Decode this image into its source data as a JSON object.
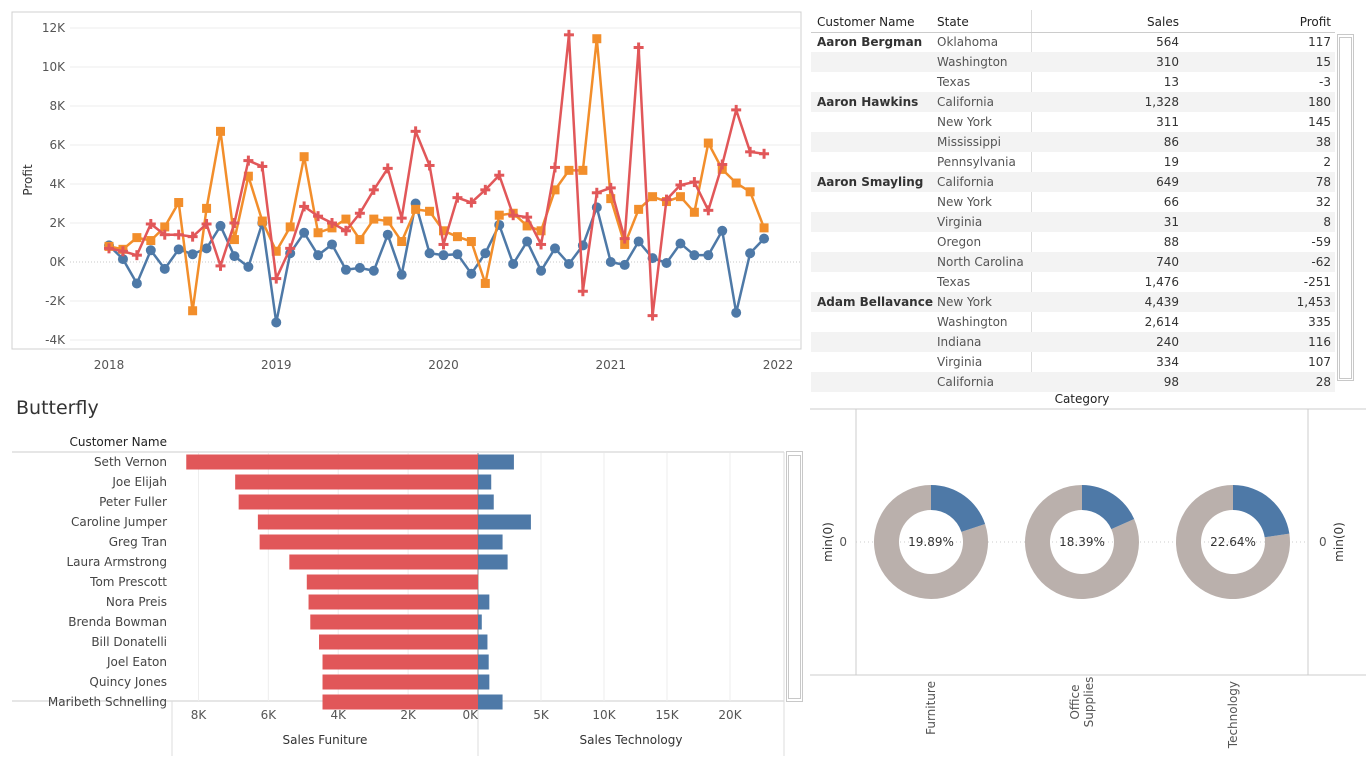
{
  "chart_data": [
    {
      "type": "line",
      "ylabel": "Profit",
      "xlabel": "",
      "ylim": [
        -4000,
        12000
      ],
      "yticks": [
        12000,
        10000,
        8000,
        6000,
        4000,
        2000,
        0,
        -2000,
        -4000
      ],
      "ytick_labels": [
        "12K",
        "10K",
        "8K",
        "6K",
        "4K",
        "2K",
        "0K",
        "-2K",
        "-4K"
      ],
      "xticks": [
        "2018",
        "2019",
        "2020",
        "2021",
        "2022"
      ],
      "x_start": "2018-01",
      "series": [
        {
          "color": "#4e79a7",
          "marker": "circle",
          "values": [
            850,
            150,
            -1100,
            600,
            -350,
            650,
            400,
            700,
            1850,
            300,
            -250,
            2000,
            -3100,
            450,
            1500,
            350,
            900,
            -400,
            -300,
            -450,
            1400,
            -650,
            3000,
            450,
            350,
            400,
            -600,
            450,
            1900,
            -100,
            1050,
            -450,
            700,
            -100,
            850,
            2800,
            0,
            -150,
            1050,
            200,
            -50,
            950,
            350,
            350,
            1600,
            -2600,
            450,
            1200
          ]
        },
        {
          "color": "#f28e2b",
          "marker": "square",
          "values": [
            800,
            650,
            1250,
            1100,
            1800,
            3050,
            -2500,
            2750,
            6700,
            1150,
            4400,
            2100,
            550,
            1800,
            5400,
            1500,
            1750,
            2200,
            1150,
            2200,
            2100,
            1050,
            2700,
            2600,
            1600,
            1300,
            1050,
            -1100,
            2400,
            2500,
            1850,
            1600,
            3700,
            4700,
            4700,
            11450,
            3250,
            900,
            2700,
            3350,
            3100,
            3350,
            2550,
            6100,
            4750,
            4050,
            3600,
            1750
          ]
        },
        {
          "color": "#e15759",
          "marker": "plus",
          "values": [
            700,
            550,
            350,
            1950,
            1400,
            1400,
            1300,
            1950,
            -200,
            2000,
            5200,
            4900,
            -850,
            700,
            2850,
            2350,
            2000,
            1600,
            2500,
            3700,
            4800,
            2250,
            6700,
            4950,
            900,
            3300,
            3050,
            3700,
            4450,
            2400,
            2300,
            900,
            4850,
            11650,
            -1500,
            3550,
            3800,
            1200,
            11000,
            -2750,
            3200,
            3950,
            4100,
            2650,
            5000,
            7800,
            5650,
            5550
          ]
        }
      ]
    },
    {
      "type": "bar",
      "title": "Butterfly",
      "row_header": "Customer Name",
      "categories": [
        "Seth Vernon",
        "Joe Elijah",
        "Peter Fuller",
        "Caroline Jumper",
        "Greg Tran",
        "Laura Armstrong",
        "Tom Prescott",
        "Nora Preis",
        "Brenda Bowman",
        "Bill Donatelli",
        "Joel Eaton",
        "Quincy Jones",
        "Maribeth Schnelling"
      ],
      "series": [
        {
          "name": "Sales Funiture",
          "color": "#e15759",
          "values": [
            8350,
            6950,
            6850,
            6300,
            6250,
            5400,
            4900,
            4850,
            4800,
            4550,
            4450,
            4450,
            4450
          ]
        },
        {
          "name": "Sales Technology",
          "color": "#4e79a7",
          "values": [
            2850,
            1050,
            1250,
            4200,
            1950,
            2350,
            0,
            900,
            300,
            750,
            850,
            900,
            1950
          ]
        }
      ],
      "left_ticks": [
        "8K",
        "6K",
        "4K",
        "2K",
        "0K"
      ],
      "left_tick_values": [
        8000,
        6000,
        4000,
        2000,
        0
      ],
      "right_ticks": [
        "5K",
        "10K",
        "15K",
        "20K"
      ],
      "right_tick_values": [
        5000,
        10000,
        15000,
        20000
      ]
    },
    {
      "type": "pie",
      "title": "Category",
      "categories": [
        "Furniture",
        "Office Supplies",
        "Technology"
      ],
      "values": [
        19.89,
        18.39,
        22.64
      ],
      "labels": [
        "19.89%",
        "18.39%",
        "22.64%"
      ],
      "highlight_color": "#4e79a7",
      "rest_color": "#bab0ac",
      "axis_label": "min(0)",
      "axis_tick": "0"
    }
  ],
  "table": {
    "headers": [
      "Customer Name",
      "State",
      "Sales",
      "Profit"
    ],
    "groups": [
      {
        "name": "Aaron Bergman",
        "rows": [
          [
            "Oklahoma",
            "564",
            "117"
          ],
          [
            "Washington",
            "310",
            "15"
          ],
          [
            "Texas",
            "13",
            "-3"
          ]
        ]
      },
      {
        "name": "Aaron Hawkins",
        "rows": [
          [
            "California",
            "1,328",
            "180"
          ],
          [
            "New York",
            "311",
            "145"
          ],
          [
            "Mississippi",
            "86",
            "38"
          ],
          [
            "Pennsylvania",
            "19",
            "2"
          ]
        ]
      },
      {
        "name": "Aaron Smayling",
        "rows": [
          [
            "California",
            "649",
            "78"
          ],
          [
            "New York",
            "66",
            "32"
          ],
          [
            "Virginia",
            "31",
            "8"
          ],
          [
            "Oregon",
            "88",
            "-59"
          ],
          [
            "North Carolina",
            "740",
            "-62"
          ],
          [
            "Texas",
            "1,476",
            "-251"
          ]
        ]
      },
      {
        "name": "Adam Bellavance",
        "rows": [
          [
            "New York",
            "4,439",
            "1,453"
          ],
          [
            "Washington",
            "2,614",
            "335"
          ],
          [
            "Indiana",
            "240",
            "116"
          ],
          [
            "Virginia",
            "334",
            "107"
          ],
          [
            "California",
            "98",
            "28"
          ]
        ]
      }
    ]
  }
}
